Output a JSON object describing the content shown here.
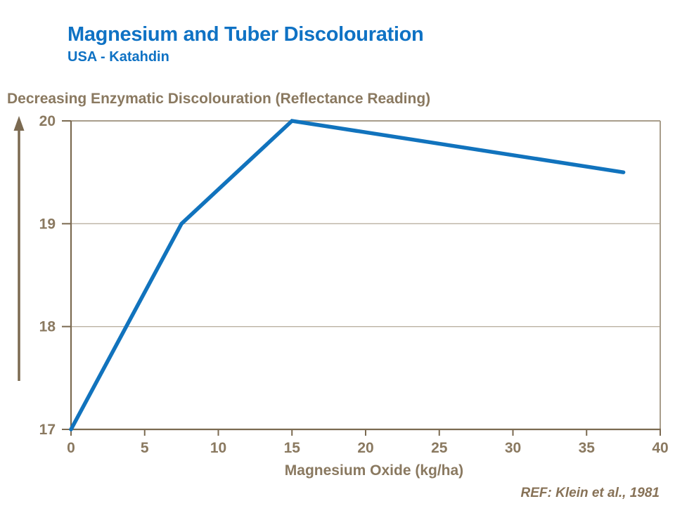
{
  "header": {
    "title": "Magnesium and Tuber Discolouration",
    "subtitle": "USA - Katahdin"
  },
  "axis_titles": {
    "y": "Decreasing Enzymatic Discolouration (Reflectance Reading)",
    "x": "Magnesium Oxide (kg/ha)"
  },
  "footer": {
    "reference": "REF: Klein et al., 1981"
  },
  "icons": {
    "y_axis_direction": "up-arrow-icon"
  },
  "colors": {
    "title_blue": "#0f72c4",
    "line_blue": "#1173bd",
    "label_brown": "#8a7960",
    "axis_brown": "#7b6a51",
    "grid_light": "#bbb2a3",
    "plot_border": "#a89d8b",
    "ref_brown": "#877257"
  },
  "chart_data": {
    "type": "line",
    "title": "Magnesium and Tuber Discolouration",
    "subtitle": "USA - Katahdin",
    "xlabel": "Magnesium Oxide (kg/ha)",
    "ylabel": "Decreasing Enzymatic Discolouration (Reflectance Reading)",
    "annotation": "REF: Klein et al., 1981",
    "xlim": [
      0,
      40
    ],
    "ylim": [
      17,
      20
    ],
    "x_ticks": [
      0,
      5,
      10,
      15,
      20,
      25,
      30,
      35,
      40
    ],
    "y_ticks": [
      17,
      18,
      19,
      20
    ],
    "grid": "horizontal",
    "legend": "none",
    "series": [
      {
        "name": "Reflectance reading",
        "points": [
          [
            0,
            17
          ],
          [
            7.5,
            19
          ],
          [
            15,
            20
          ],
          [
            37.5,
            19.5
          ]
        ]
      }
    ]
  }
}
